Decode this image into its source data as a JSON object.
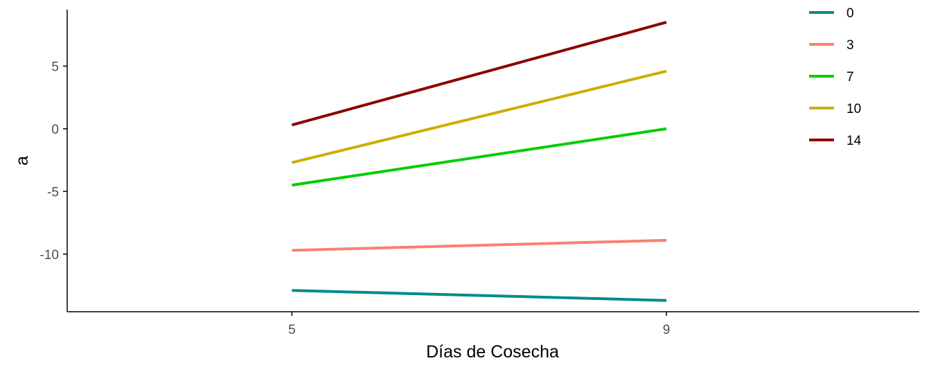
{
  "chart_data": {
    "type": "line",
    "xlabel": "Días de Cosecha",
    "ylabel": "a",
    "x": [
      5,
      9
    ],
    "x_ticks": [
      "5",
      "9"
    ],
    "y_ticks": [
      5,
      0,
      -5,
      -10
    ],
    "xlim": [
      2.6,
      11.7
    ],
    "ylim": [
      -14.6,
      9.5
    ],
    "grid": false,
    "legend_position": "top-right",
    "series": [
      {
        "name": "0",
        "color": "#008B8B",
        "values": [
          -12.9,
          -13.7
        ]
      },
      {
        "name": "3",
        "color": "#FA8072",
        "values": [
          -9.7,
          -8.9
        ]
      },
      {
        "name": "7",
        "color": "#00CD00",
        "values": [
          -4.5,
          0.0
        ]
      },
      {
        "name": "10",
        "color": "#CDAD00",
        "values": [
          -2.7,
          4.6
        ]
      },
      {
        "name": "14",
        "color": "#8B0000",
        "values": [
          0.3,
          8.5
        ]
      }
    ]
  }
}
